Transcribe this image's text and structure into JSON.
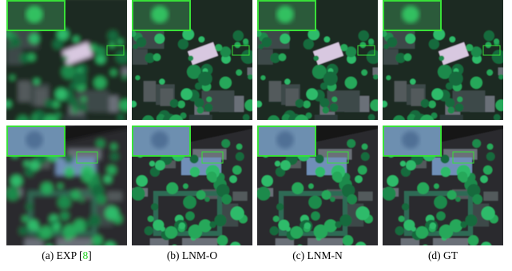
{
  "figure": {
    "captions": [
      {
        "prefix": "(a) EXP [",
        "citation": "8",
        "suffix": "]"
      },
      {
        "text": "(b) LNM-O"
      },
      {
        "text": "(c) LNM-N"
      },
      {
        "text": "(d) GT"
      }
    ]
  }
}
